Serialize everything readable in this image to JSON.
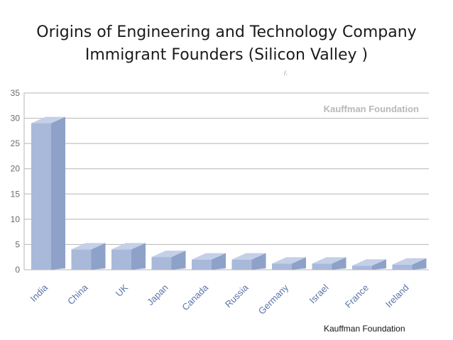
{
  "slide": {
    "title_line1": "Origins of Engineering and Technology Company",
    "title_line2": "Immigrant Founders (Silicon Valley )",
    "source_caption": "Kauffman Foundation",
    "stray_mark": "/."
  },
  "chart_data": {
    "type": "bar",
    "categories": [
      "India",
      "China",
      "UK",
      "Japan",
      "Canada",
      "Russia",
      "Germany",
      "Israel",
      "France",
      "Ireland"
    ],
    "values": [
      30,
      5,
      5,
      3.5,
      3,
      3,
      2.2,
      2.2,
      1.8,
      2
    ],
    "ylim": [
      0,
      35
    ],
    "yticks": [
      0,
      5,
      10,
      15,
      20,
      25,
      30,
      35
    ],
    "grid": true,
    "watermark": "Kauffman Foundation",
    "colors": {
      "bar_front": "#a9b9da",
      "bar_side": "#8ea1c8",
      "bar_top": "#c4d0e8",
      "axis_tick_text": "#6b6b6b",
      "grid": "#b5b5b5",
      "label_text": "#5a74a8"
    }
  }
}
